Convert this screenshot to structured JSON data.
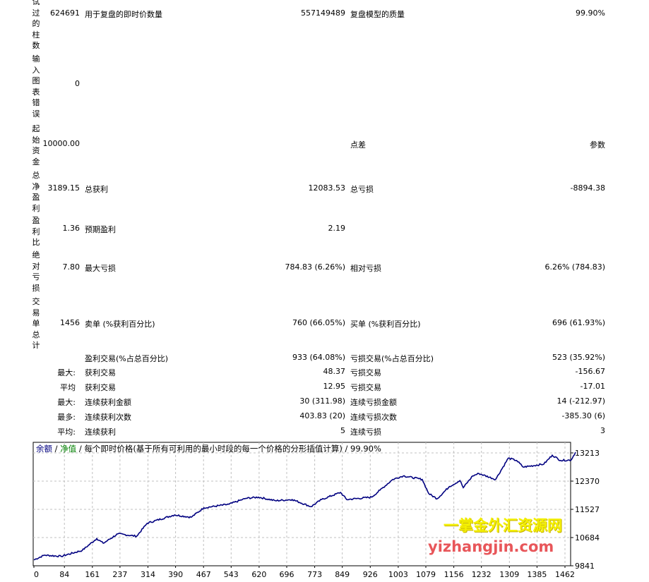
{
  "report": {
    "bars_tested": {
      "label": "试过的柱数",
      "value": "624691",
      "label2": "用于复盘的即时价数量",
      "value2": "557149489",
      "label3": "复盘模型的质量",
      "value3": "99.90%"
    },
    "chart_errors": {
      "label": "输入图表错误",
      "value": "0"
    },
    "initial_deposit": {
      "label": "起始资金",
      "value": "10000.00",
      "label3": "点差",
      "value3": "参数"
    },
    "net_profit": {
      "label": "总净盈利",
      "value": "3189.15",
      "label2": "总获利",
      "value2": "12083.53",
      "label3": "总亏损",
      "value3": "-8894.38"
    },
    "profit_factor": {
      "label": "盈利比",
      "value": "1.36",
      "label2": "预期盈利",
      "value2": "2.19"
    },
    "abs_drawdown": {
      "label": "绝对亏损",
      "value": "7.80",
      "label2": "最大亏损",
      "value2": "784.83 (6.26%)",
      "label3": "相对亏损",
      "value3": "6.26% (784.83)"
    },
    "total_trades": {
      "label": "交易单总计",
      "value": "1456",
      "label2": "卖单 (%获利百分比)",
      "value2": "760 (66.05%)",
      "label3": "买单 (%获利百分比)",
      "value3": "696 (61.93%)"
    },
    "rows": [
      {
        "prefix": "",
        "label2": "盈利交易(%占总百分比)",
        "value2": "933 (64.08%)",
        "label3": "亏损交易(%占总百分比)",
        "value3": "523 (35.92%)"
      },
      {
        "prefix": "最大:",
        "label2": "获利交易",
        "value2": "48.37",
        "label3": "亏损交易",
        "value3": "-156.67"
      },
      {
        "prefix": "平均",
        "label2": "获利交易",
        "value2": "12.95",
        "label3": "亏损交易",
        "value3": "-17.01"
      },
      {
        "prefix": "最大:",
        "label2": "连续获利金额",
        "value2": "30 (311.98)",
        "label3": "连续亏损金额",
        "value3": "14 (-212.97)"
      },
      {
        "prefix": "最多:",
        "label2": "连续获利次数",
        "value2": "403.83 (20)",
        "label3": "连续亏损次数",
        "value3": "-385.30 (6)"
      },
      {
        "prefix": "平均:",
        "label2": "连续获利",
        "value2": "5",
        "label3": "连续亏损",
        "value3": "3"
      }
    ]
  },
  "chart_data": {
    "type": "line",
    "legend": {
      "balance": "余额",
      "sep1": " / ",
      "equity": "净值",
      "rest": " / 每个即时价格(基于所有可利用的最小时段的每一个价格的分形插值计算) / 99.90%"
    },
    "colors": {
      "line": "#000080",
      "balance_label": "#000080",
      "equity_label": "#008000",
      "grid": "#c0c0c0"
    },
    "x_ticks": [
      "0",
      "84",
      "161",
      "237",
      "314",
      "390",
      "467",
      "543",
      "620",
      "696",
      "773",
      "849",
      "926",
      "1003",
      "1079",
      "1156",
      "1232",
      "1309",
      "1385",
      "1462"
    ],
    "y_ticks": [
      "13213",
      "12370",
      "11527",
      "10684",
      "9841"
    ],
    "xlim": [
      0,
      1500
    ],
    "ylim": [
      9841,
      13213
    ],
    "grid": true,
    "series": [
      {
        "x": [
          0,
          29,
          75,
          133,
          173,
          191,
          231,
          283,
          312,
          387,
          433,
          468,
          537,
          584,
          618,
          665,
          711,
          763,
          792,
          844,
          861,
          930,
          953,
          988,
          1017,
          1069,
          1087,
          1110,
          1144,
          1173,
          1182,
          1208,
          1225,
          1271,
          1306,
          1329,
          1347,
          1404,
          1427,
          1450,
          1479,
          1491
        ],
        "y": [
          10018,
          10159,
          10124,
          10300,
          10654,
          10513,
          10795,
          10725,
          11114,
          11361,
          11290,
          11573,
          11679,
          11856,
          11891,
          11785,
          11820,
          11608,
          11820,
          12033,
          11820,
          11891,
          12103,
          12421,
          12527,
          12421,
          11997,
          11842,
          12209,
          12386,
          12174,
          12527,
          12598,
          12421,
          13057,
          12987,
          12789,
          12881,
          13143,
          12987,
          13001,
          13234
        ]
      }
    ]
  },
  "watermark": {
    "cn": "一掌金外汇资源网",
    "url": "yizhangjin.com"
  }
}
